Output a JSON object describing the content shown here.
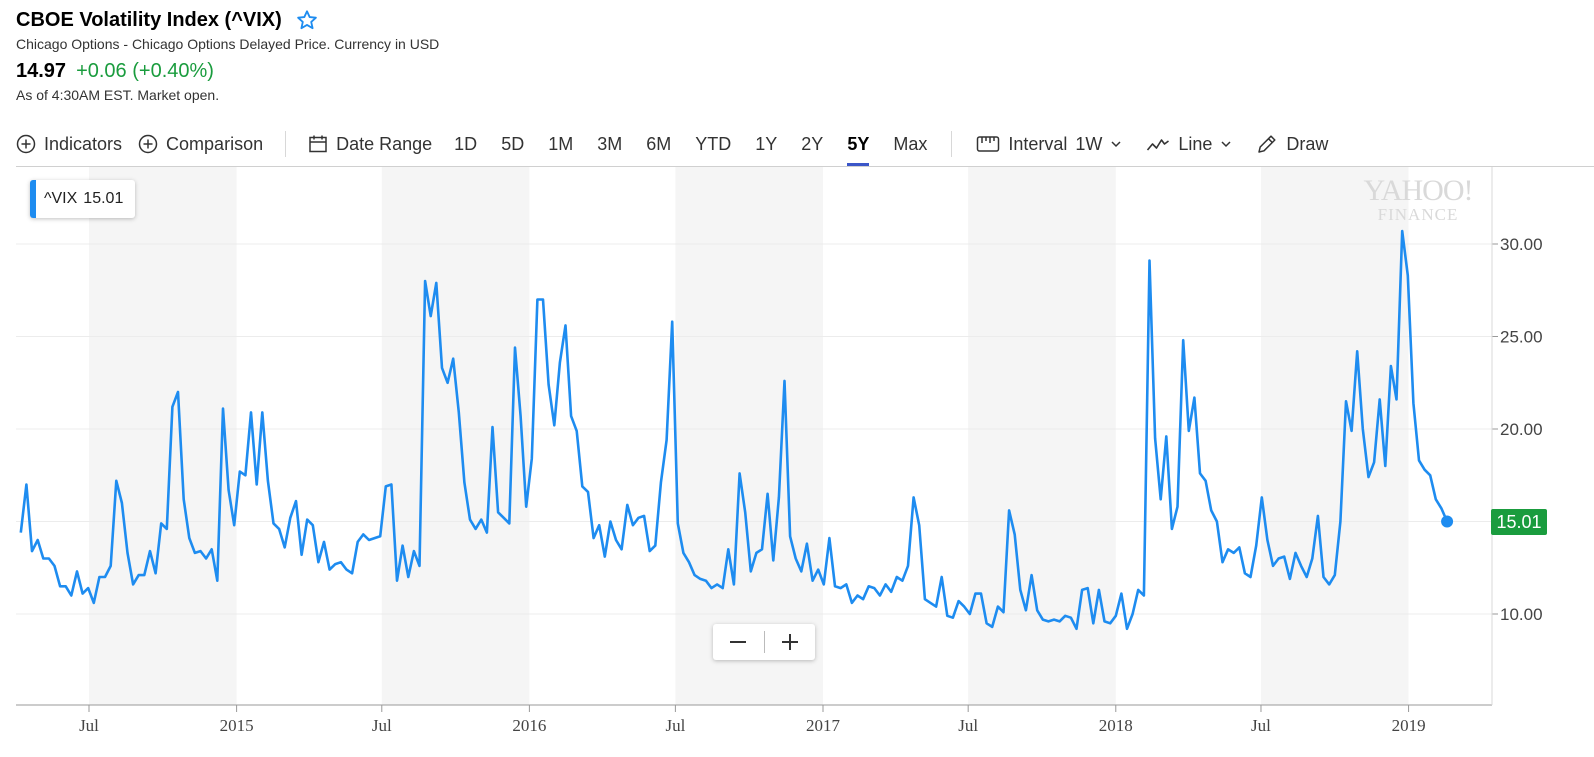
{
  "header": {
    "title": "CBOE Volatility Index (^VIX)",
    "subtitle": "Chicago Options - Chicago Options Delayed Price. Currency in USD",
    "price": "14.97",
    "change": "+0.06 (+0.40%)",
    "as_of": "As of 4:30AM EST. Market open."
  },
  "toolbar": {
    "indicators": "Indicators",
    "comparison": "Comparison",
    "date_range": "Date Range",
    "ranges": [
      "1D",
      "5D",
      "1M",
      "3M",
      "6M",
      "YTD",
      "1Y",
      "2Y",
      "5Y",
      "Max"
    ],
    "active_range": "5Y",
    "interval_label": "Interval",
    "interval_value": "1W",
    "chart_type": "Line",
    "draw": "Draw"
  },
  "legend": {
    "symbol": "^VIX",
    "value": "15.01"
  },
  "watermark": {
    "line1": "YAHOO!",
    "line2": "FINANCE"
  },
  "last_value_badge": "15.01",
  "colors": {
    "line": "#1e8cf0",
    "positive": "#1a9c3e",
    "active_tab": "#3b56c8",
    "shaded_band": "#f5f5f5"
  },
  "chart_data": {
    "type": "line",
    "series": [
      {
        "name": "^VIX",
        "x_start": "2014-04-07",
        "x_step_days": 7,
        "values": [
          14.4,
          17.0,
          13.4,
          14.0,
          13.0,
          13.0,
          12.6,
          11.5,
          11.5,
          11.0,
          12.3,
          11.1,
          11.4,
          10.6,
          12.0,
          12.0,
          12.6,
          17.2,
          16.0,
          13.3,
          11.6,
          12.1,
          12.1,
          13.4,
          12.2,
          14.9,
          14.6,
          21.2,
          22.0,
          16.2,
          14.1,
          13.3,
          13.4,
          13.0,
          13.5,
          11.8,
          21.1,
          16.7,
          14.8,
          17.7,
          17.5,
          20.9,
          17.0,
          20.9,
          17.2,
          14.9,
          14.6,
          13.6,
          15.2,
          16.1,
          13.2,
          15.1,
          14.8,
          12.8,
          13.9,
          12.4,
          12.7,
          12.8,
          12.4,
          12.2,
          13.9,
          14.3,
          14.0,
          14.1,
          14.2,
          16.9,
          17.0,
          11.8,
          13.7,
          12.0,
          13.4,
          12.6,
          28.0,
          26.1,
          27.9,
          23.3,
          22.5,
          23.8,
          20.9,
          17.1,
          15.1,
          14.6,
          15.1,
          14.4,
          20.1,
          15.5,
          15.2,
          14.9,
          24.4,
          20.7,
          15.8,
          18.4,
          27.0,
          27.0,
          22.4,
          20.2,
          23.6,
          25.6,
          20.7,
          19.9,
          16.9,
          16.6,
          14.1,
          14.8,
          13.1,
          15.0,
          14.0,
          13.5,
          15.9,
          14.8,
          15.2,
          15.3,
          13.4,
          13.7,
          17.1,
          19.4,
          25.8,
          14.9,
          13.3,
          12.8,
          12.1,
          11.9,
          11.8,
          11.4,
          11.6,
          11.4,
          13.5,
          11.6,
          17.6,
          15.5,
          12.3,
          13.3,
          13.5,
          16.5,
          12.9,
          16.3,
          22.6,
          14.2,
          13.0,
          12.3,
          13.8,
          11.8,
          12.4,
          11.6,
          14.1,
          11.5,
          11.4,
          11.6,
          10.6,
          11.0,
          10.8,
          11.5,
          11.4,
          11.0,
          11.6,
          11.2,
          12.0,
          11.8,
          12.6,
          16.3,
          14.8,
          10.8,
          10.6,
          10.4,
          12.0,
          9.9,
          9.8,
          10.7,
          10.4,
          10.0,
          11.1,
          11.1,
          9.5,
          9.3,
          10.4,
          10.1,
          15.6,
          14.3,
          11.3,
          10.2,
          12.1,
          10.2,
          9.7,
          9.6,
          9.7,
          9.6,
          9.9,
          9.8,
          9.2,
          11.3,
          11.4,
          9.5,
          11.3,
          9.6,
          9.5,
          9.9,
          11.1,
          9.2,
          10.0,
          11.3,
          11.0,
          29.1,
          19.5,
          16.2,
          19.6,
          14.6,
          15.8,
          24.8,
          19.9,
          21.7,
          17.6,
          17.2,
          15.6,
          15.0,
          12.8,
          13.5,
          13.3,
          13.6,
          12.2,
          12.0,
          13.7,
          16.3,
          14.0,
          12.6,
          13.0,
          13.1,
          11.9,
          13.3,
          12.6,
          12.0,
          13.0,
          15.3,
          12.0,
          11.6,
          12.1,
          15.0,
          21.5,
          19.9,
          24.2,
          20.0,
          17.4,
          18.2,
          21.6,
          18.0,
          23.4,
          21.6,
          30.7,
          28.3,
          21.4,
          18.3,
          17.8,
          17.5,
          16.2,
          15.7,
          15.0
        ],
        "last_value": 15.01
      }
    ],
    "xlabel": "",
    "ylabel": "",
    "y_ticks": [
      10,
      15,
      20,
      25,
      30
    ],
    "y_tick_labels": [
      "10.00",
      "15.01",
      "20.00",
      "25.00",
      "30.00"
    ],
    "ylim": [
      5,
      33
    ],
    "x_ticks": [
      {
        "label": "Jul",
        "date": "2014-07-01"
      },
      {
        "label": "2015",
        "date": "2015-01-01"
      },
      {
        "label": "Jul",
        "date": "2015-07-01"
      },
      {
        "label": "2016",
        "date": "2016-01-01"
      },
      {
        "label": "Jul",
        "date": "2016-07-01"
      },
      {
        "label": "2017",
        "date": "2017-01-01"
      },
      {
        "label": "Jul",
        "date": "2017-07-01"
      },
      {
        "label": "2018",
        "date": "2018-01-01"
      },
      {
        "label": "Jul",
        "date": "2018-07-01"
      },
      {
        "label": "2019",
        "date": "2019-01-01"
      }
    ],
    "x_range": [
      "2014-04-01",
      "2019-04-15"
    ],
    "shaded_periods": [
      [
        "2014-07-01",
        "2015-01-01"
      ],
      [
        "2015-07-01",
        "2016-01-01"
      ],
      [
        "2016-07-01",
        "2017-01-01"
      ],
      [
        "2017-07-01",
        "2018-01-01"
      ],
      [
        "2018-07-01",
        "2019-01-01"
      ]
    ],
    "grid": true,
    "legend": "top-left"
  }
}
